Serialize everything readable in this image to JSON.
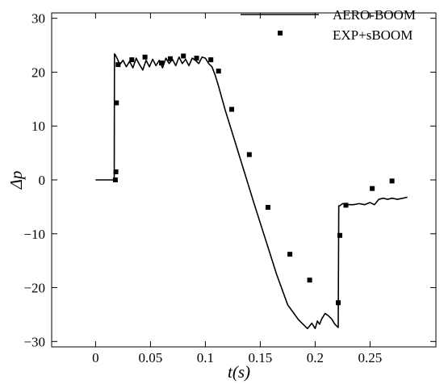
{
  "chart_data": {
    "type": "line",
    "xlabel": "t(s)",
    "ylabel": "Δp",
    "xlim": [
      -0.04,
      0.31
    ],
    "ylim": [
      -31,
      31
    ],
    "x_ticks": [
      0,
      0.05,
      0.1,
      0.15,
      0.2,
      0.25
    ],
    "x_tick_labels": [
      "0",
      "0.05",
      "0.1",
      "0.15",
      "0.2",
      "0.25"
    ],
    "y_ticks": [
      -30,
      -20,
      -10,
      0,
      10,
      20,
      30
    ],
    "y_tick_labels": [
      "−30",
      "−20",
      "−10",
      "0",
      "10",
      "20",
      "30"
    ],
    "grid": false,
    "legend_position": "top-right",
    "series": [
      {
        "name": "AERO-BOOM",
        "style": "line",
        "color": "#000000",
        "x": [
          0,
          0.017,
          0.0172,
          0.018,
          0.02,
          0.022,
          0.025,
          0.028,
          0.031,
          0.034,
          0.037,
          0.04,
          0.043,
          0.046,
          0.049,
          0.052,
          0.055,
          0.058,
          0.061,
          0.064,
          0.067,
          0.07,
          0.073,
          0.076,
          0.079,
          0.082,
          0.085,
          0.088,
          0.091,
          0.094,
          0.097,
          0.1,
          0.103,
          0.106,
          0.109,
          0.112,
          0.118,
          0.125,
          0.135,
          0.145,
          0.155,
          0.165,
          0.175,
          0.185,
          0.193,
          0.197,
          0.2,
          0.202,
          0.204,
          0.206,
          0.209,
          0.212,
          0.215,
          0.218,
          0.221,
          0.2215,
          0.2225,
          0.225,
          0.23,
          0.235,
          0.24,
          0.245,
          0.25,
          0.254,
          0.258,
          0.262,
          0.266,
          0.27,
          0.275,
          0.28,
          0.284
        ],
        "y": [
          0,
          0,
          23.4,
          23.2,
          22.4,
          21.4,
          22.2,
          21.0,
          22.0,
          20.8,
          22.6,
          21.4,
          20.4,
          22.2,
          21.0,
          22.4,
          21.2,
          22.2,
          20.8,
          22.6,
          21.6,
          22.4,
          21.2,
          22.8,
          21.6,
          22.4,
          21.2,
          22.6,
          22.2,
          21.6,
          22.8,
          22.6,
          21.6,
          21.0,
          19.4,
          17.4,
          13.0,
          8.4,
          1.8,
          -4.8,
          -11.2,
          -17.6,
          -23.2,
          -26.0,
          -27.6,
          -26.6,
          -27.6,
          -26.2,
          -26.8,
          -25.8,
          -24.8,
          -25.2,
          -25.8,
          -26.8,
          -27.4,
          -4.8,
          -4.8,
          -4.4,
          -4.6,
          -4.6,
          -4.4,
          -4.6,
          -4.2,
          -4.6,
          -3.6,
          -3.4,
          -3.6,
          -3.4,
          -3.6,
          -3.4,
          -3.2
        ]
      },
      {
        "name": "EXP+sBOOM",
        "style": "markers",
        "color": "#000000",
        "x": [
          0.018,
          0.0185,
          0.019,
          0.0205,
          0.033,
          0.045,
          0.06,
          0.068,
          0.08,
          0.092,
          0.105,
          0.112,
          0.124,
          0.14,
          0.157,
          0.177,
          0.195,
          0.221,
          0.2225,
          0.228,
          0.252,
          0.27
        ],
        "y": [
          0,
          1.5,
          14.3,
          21.4,
          22.3,
          22.8,
          21.7,
          22.5,
          23.0,
          22.6,
          22.3,
          20.2,
          13.1,
          4.7,
          -5.1,
          -13.8,
          -18.6,
          -22.8,
          -10.3,
          -4.7,
          -1.6,
          -0.2
        ]
      }
    ]
  }
}
